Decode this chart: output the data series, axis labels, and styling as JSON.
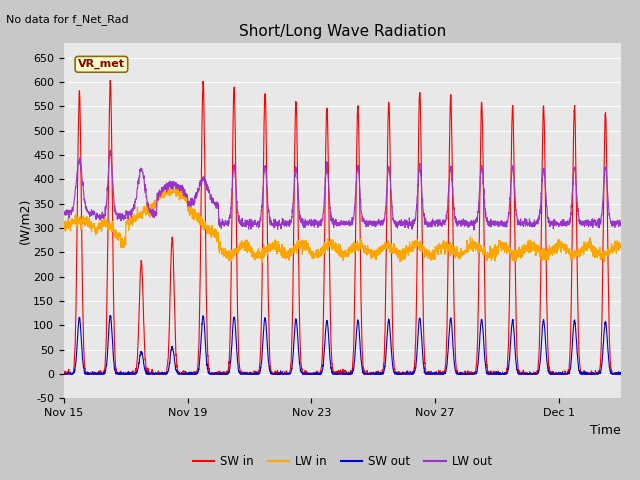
{
  "title": "Short/Long Wave Radiation",
  "xlabel": "Time",
  "ylabel": "(W/m2)",
  "ylim": [
    -50,
    680
  ],
  "yticks": [
    -50,
    0,
    50,
    100,
    150,
    200,
    250,
    300,
    350,
    400,
    450,
    500,
    550,
    600,
    650
  ],
  "annotation_text": "No data for f_Net_Rad",
  "station_label": "VR_met",
  "x_tick_labels": [
    "Nov 15",
    "Nov 19",
    "Nov 23",
    "Nov 27",
    "Dec 1"
  ],
  "x_tick_positions": [
    0,
    4,
    8,
    12,
    16
  ],
  "legend_labels": [
    "SW in",
    "LW in",
    "SW out",
    "LW out"
  ],
  "sw_in_color": "#ff0000",
  "lw_in_color": "#ffa500",
  "sw_out_color": "#0000cc",
  "lw_out_color": "#9933cc",
  "fig_bg_color": "#c8c8c8",
  "plot_bg_color": "#e8e8e8",
  "title_fontsize": 11,
  "tick_fontsize": 8,
  "n_days": 18,
  "pts_per_day": 144
}
